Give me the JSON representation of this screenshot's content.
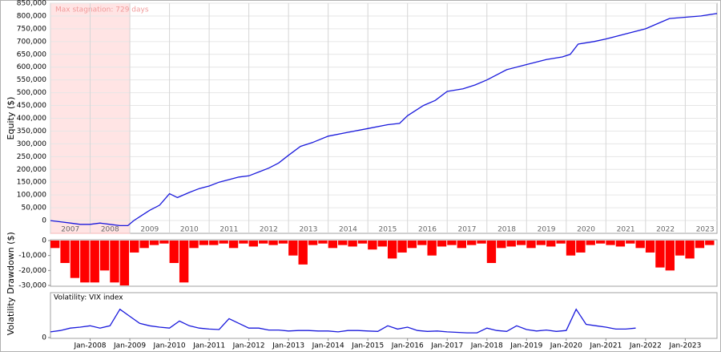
{
  "chart_data": [
    {
      "type": "line",
      "ylabel": "Equity ($)",
      "color": "#1a1adc",
      "grid": true,
      "annotation": {
        "text": "Max stagnation: 729 days",
        "x": [
          2007,
          2009
        ]
      },
      "xlim": [
        2007,
        2023.8
      ],
      "ylim": [
        -50000,
        850000
      ],
      "yticks": [
        0,
        {
          "value": 50000,
          "label": "50,000"
        },
        {
          "value": 100000,
          "label": "100,000"
        },
        {
          "value": 150000,
          "label": "150,000"
        },
        {
          "value": 200000,
          "label": "200,000"
        },
        {
          "value": 250000,
          "label": "250,000"
        },
        {
          "value": 300000,
          "label": "300,000"
        },
        {
          "value": 350000,
          "label": "350,000"
        },
        {
          "value": 400000,
          "label": "400,000"
        },
        {
          "value": 450000,
          "label": "450,000"
        },
        {
          "value": 500000,
          "label": "500,000"
        },
        {
          "value": 550000,
          "label": "550,000"
        },
        {
          "value": 600000,
          "label": "600,000"
        },
        {
          "value": 650000,
          "label": "650,000"
        },
        {
          "value": 700000,
          "label": "700,000"
        },
        {
          "value": 750000,
          "label": "750,000"
        },
        {
          "value": 800000,
          "label": "800,000"
        },
        {
          "value": 850000,
          "label": "850,000"
        }
      ],
      "xticks": [
        {
          "value": 2007,
          "label": "2007"
        },
        {
          "value": 2008,
          "label": "2008"
        },
        {
          "value": 2009,
          "label": "2009"
        },
        {
          "value": 2010,
          "label": "2010"
        },
        {
          "value": 2011,
          "label": "2011"
        },
        {
          "value": 2012,
          "label": "2012"
        },
        {
          "value": 2013,
          "label": "2013"
        },
        {
          "value": 2014,
          "label": "2014"
        },
        {
          "value": 2015,
          "label": "2015"
        },
        {
          "value": 2016,
          "label": "2016"
        },
        {
          "value": 2017,
          "label": "2017"
        },
        {
          "value": 2018,
          "label": "2018"
        },
        {
          "value": 2019,
          "label": "2019"
        },
        {
          "value": 2020,
          "label": "2020"
        },
        {
          "value": 2021,
          "label": "2021"
        },
        {
          "value": 2022,
          "label": "2022"
        },
        {
          "value": 2023,
          "label": "2023"
        }
      ],
      "x": [
        2007,
        2007.25,
        2007.5,
        2007.75,
        2008,
        2008.25,
        2008.5,
        2008.75,
        2008.95,
        2009.1,
        2009.3,
        2009.5,
        2009.75,
        2010,
        2010.2,
        2010.5,
        2010.75,
        2011,
        2011.25,
        2011.5,
        2011.75,
        2012,
        2012.25,
        2012.5,
        2012.75,
        2013,
        2013.3,
        2013.6,
        2014,
        2014.5,
        2015,
        2015.5,
        2015.8,
        2016,
        2016.4,
        2016.7,
        2017,
        2017.4,
        2017.7,
        2018,
        2018.5,
        2019,
        2019.5,
        2019.9,
        2020.1,
        2020.3,
        2020.7,
        2021,
        2021.5,
        2022,
        2022.3,
        2022.6,
        2023,
        2023.4,
        2023.8
      ],
      "values": [
        0,
        -5000,
        -10000,
        -15000,
        -15000,
        -10000,
        -15000,
        -20000,
        -20000,
        0,
        20000,
        40000,
        60000,
        105000,
        90000,
        110000,
        125000,
        135000,
        150000,
        160000,
        170000,
        175000,
        190000,
        205000,
        225000,
        255000,
        290000,
        305000,
        330000,
        345000,
        360000,
        375000,
        380000,
        410000,
        450000,
        470000,
        505000,
        515000,
        530000,
        550000,
        590000,
        610000,
        630000,
        640000,
        650000,
        690000,
        700000,
        710000,
        730000,
        750000,
        770000,
        790000,
        795000,
        800000,
        810000
      ]
    },
    {
      "type": "bar",
      "ylabel": "Drawdown ($)",
      "color": "#ff0000",
      "xlim": [
        2007,
        2023.8
      ],
      "ylim": [
        -30000,
        0
      ],
      "yticks": [
        0,
        {
          "value": -10000,
          "label": "-10,000"
        },
        {
          "value": -20000,
          "label": "-20,000"
        },
        {
          "value": -30000,
          "label": "-30,000"
        }
      ],
      "x": [
        2007,
        2007.25,
        2007.5,
        2007.75,
        2008,
        2008.25,
        2008.5,
        2008.75,
        2009,
        2009.25,
        2009.5,
        2009.75,
        2010,
        2010.25,
        2010.5,
        2010.75,
        2011,
        2011.25,
        2011.5,
        2011.75,
        2012,
        2012.25,
        2012.5,
        2012.75,
        2013,
        2013.25,
        2013.5,
        2013.75,
        2014,
        2014.25,
        2014.5,
        2014.75,
        2015,
        2015.25,
        2015.5,
        2015.75,
        2016,
        2016.25,
        2016.5,
        2016.75,
        2017,
        2017.25,
        2017.5,
        2017.75,
        2018,
        2018.25,
        2018.5,
        2018.75,
        2019,
        2019.25,
        2019.5,
        2019.75,
        2020,
        2020.25,
        2020.5,
        2020.75,
        2021,
        2021.25,
        2021.5,
        2021.75,
        2022,
        2022.25,
        2022.5,
        2022.75,
        2023,
        2023.25,
        2023.5
      ],
      "values": [
        -5000,
        -15000,
        -25000,
        -28000,
        -28000,
        -20000,
        -28000,
        -30000,
        -8000,
        -5000,
        -3000,
        -2000,
        -15000,
        -28000,
        -5000,
        -3000,
        -3000,
        -2000,
        -5000,
        -2000,
        -4000,
        -2000,
        -3000,
        -2000,
        -10000,
        -16000,
        -3000,
        -2000,
        -5000,
        -3000,
        -4000,
        -2000,
        -6000,
        -4000,
        -12000,
        -8000,
        -5000,
        -3000,
        -10000,
        -4000,
        -3000,
        -5000,
        -3000,
        -2000,
        -15000,
        -5000,
        -4000,
        -3000,
        -5000,
        -3000,
        -4000,
        -2000,
        -10000,
        -8000,
        -3000,
        -2000,
        -3000,
        -4000,
        -2000,
        -5000,
        -8000,
        -18000,
        -20000,
        -10000,
        -12000,
        -5000,
        -3000
      ]
    },
    {
      "type": "line",
      "ylabel": "Volatility",
      "title": "Volatility: VIX index",
      "color": "#1a1adc",
      "xlim": [
        2007,
        2023.8
      ],
      "ylim": [
        0,
        90
      ],
      "yticks": [
        0
      ],
      "xticks": [
        {
          "value": 2008,
          "label": "Jan-2008"
        },
        {
          "value": 2009,
          "label": "Jan-2009"
        },
        {
          "value": 2010,
          "label": "Jan-2010"
        },
        {
          "value": 2011,
          "label": "Jan-2011"
        },
        {
          "value": 2012,
          "label": "Jan-2012"
        },
        {
          "value": 2013,
          "label": "Jan-2013"
        },
        {
          "value": 2014,
          "label": "Jan-2014"
        },
        {
          "value": 2015,
          "label": "Jan-2015"
        },
        {
          "value": 2016,
          "label": "Jan-2016"
        },
        {
          "value": 2017,
          "label": "Jan-2017"
        },
        {
          "value": 2018,
          "label": "Jan-2018"
        },
        {
          "value": 2019,
          "label": "Jan-2019"
        },
        {
          "value": 2020,
          "label": "Jan-2020"
        },
        {
          "value": 2021,
          "label": "Jan-2021"
        },
        {
          "value": 2022,
          "label": "Jan-2022"
        },
        {
          "value": 2023,
          "label": "Jan-2023"
        }
      ],
      "x": [
        2007,
        2007.25,
        2007.5,
        2007.75,
        2008,
        2008.25,
        2008.5,
        2008.75,
        2009,
        2009.25,
        2009.5,
        2009.75,
        2010,
        2010.25,
        2010.5,
        2010.75,
        2011,
        2011.25,
        2011.5,
        2011.75,
        2012,
        2012.25,
        2012.5,
        2012.75,
        2013,
        2013.25,
        2013.5,
        2013.75,
        2014,
        2014.25,
        2014.5,
        2014.75,
        2015,
        2015.25,
        2015.5,
        2015.75,
        2016,
        2016.25,
        2016.5,
        2016.75,
        2017,
        2017.25,
        2017.5,
        2017.75,
        2018,
        2018.25,
        2018.5,
        2018.75,
        2019,
        2019.25,
        2019.5,
        2019.75,
        2020,
        2020.25,
        2020.5,
        2020.75,
        2021,
        2021.25,
        2021.5,
        2021.75
      ],
      "values": [
        12,
        15,
        20,
        22,
        25,
        20,
        25,
        60,
        45,
        30,
        25,
        22,
        20,
        35,
        25,
        20,
        18,
        17,
        40,
        30,
        20,
        20,
        16,
        16,
        14,
        15,
        15,
        14,
        14,
        12,
        15,
        15,
        14,
        13,
        25,
        18,
        22,
        15,
        13,
        14,
        12,
        11,
        10,
        10,
        20,
        15,
        13,
        25,
        17,
        14,
        16,
        13,
        15,
        60,
        28,
        25,
        22,
        18,
        18,
        20
      ]
    }
  ]
}
